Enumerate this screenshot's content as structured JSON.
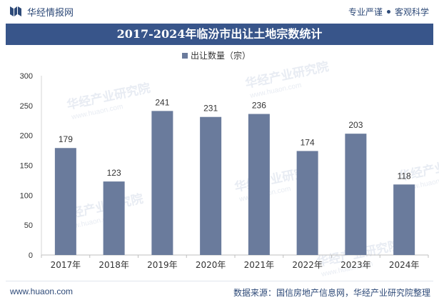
{
  "header": {
    "site_name": "华经情报网",
    "slogan_left": "专业严谨",
    "slogan_right": "客观科学",
    "brand_color": "#2e4a78"
  },
  "title": "2017-2024年临汾市出让土地宗数统计",
  "watermark": {
    "cn": "华经产业研究院",
    "en": "www.huaon.com"
  },
  "chart_data": {
    "type": "bar",
    "title": "2017-2024年临汾市出让土地宗数统计",
    "categories": [
      "2017年",
      "2018年",
      "2019年",
      "2020年",
      "2021年",
      "2022年",
      "2023年",
      "2024年"
    ],
    "series": [
      {
        "name": "出让数量（宗）",
        "values": [
          179,
          123,
          241,
          231,
          236,
          174,
          203,
          118
        ],
        "color": "#6a7b9c"
      }
    ],
    "ylim": [
      0,
      300
    ],
    "yticks": [
      0,
      50,
      100,
      150,
      200,
      250,
      300
    ],
    "xlabel": "",
    "ylabel": "",
    "legend_position": "top-center",
    "grid": false
  },
  "footer": {
    "url": "www.huaon.com",
    "source": "数据来源：国信房地产信息网，华经产业研究院整理"
  }
}
